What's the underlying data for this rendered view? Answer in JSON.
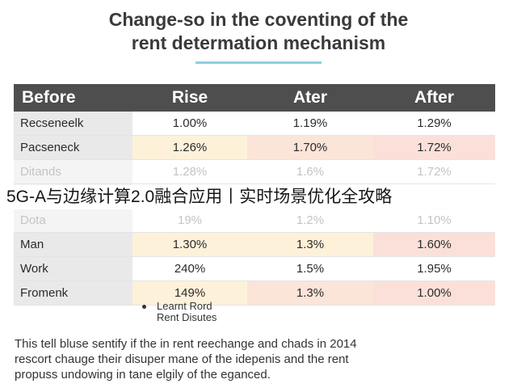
{
  "document": {
    "title_line1": "Change-so in the coventing of the",
    "title_line2": "rent determation mechanism"
  },
  "table": {
    "headers": [
      "Before",
      "Rise",
      "Ater",
      "After"
    ],
    "rows": [
      {
        "name": "Recseneelk",
        "rise": "1.00%",
        "ater": "1.19%",
        "after": "1.29%"
      },
      {
        "name": "Pacseneck",
        "rise": "1.26%",
        "ater": "1.70%",
        "after": "1.72%"
      },
      {
        "name": "Ditands",
        "rise": "1.28%",
        "ater": "1.6%",
        "after": "1.72%"
      },
      {
        "name": "",
        "rise": "",
        "ater": "",
        "after": ""
      },
      {
        "name": "Dota",
        "rise": "19%",
        "ater": "1.2%",
        "after": "1.10%"
      },
      {
        "name": "Man",
        "rise": "1.30%",
        "ater": "1.3%",
        "after": "1.60%"
      },
      {
        "name": "Work",
        "rise": "240%",
        "ater": "1.5%",
        "after": "1.95%"
      },
      {
        "name": "Fromenk",
        "rise": "149%",
        "ater": "1.3%",
        "after": "1.00%"
      }
    ]
  },
  "overlay": {
    "text": "5G-A与边缘计算2.0融合应用丨实时场景优化全攻略"
  },
  "bullets": {
    "item1": "Learnt Rord",
    "item2": "Rent Disutes"
  },
  "footnote": {
    "line1": "This tell bluse sentify if the in rent reechange and chads in 2014",
    "line2": "rescort chauge their disuper mane of the idepenis and the rent",
    "line3": "propuss undowing in tane elgily of the eganced."
  }
}
